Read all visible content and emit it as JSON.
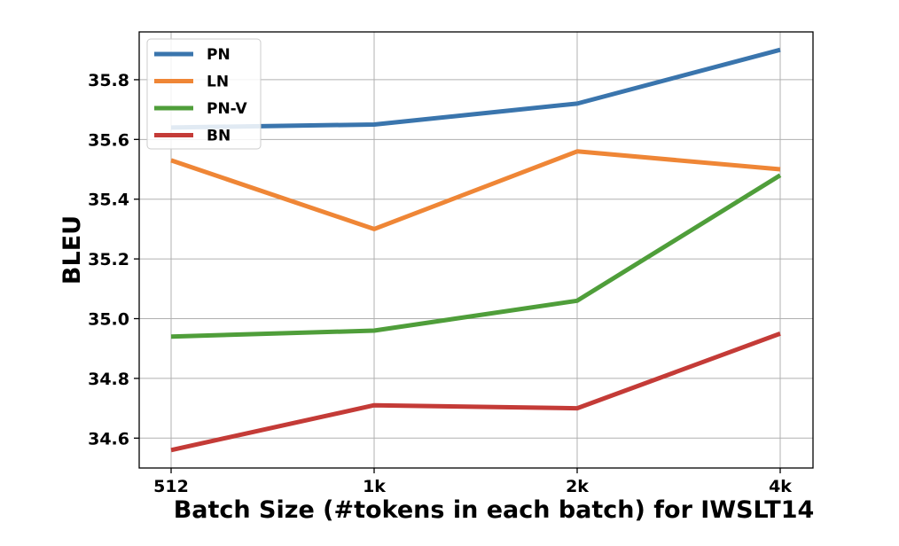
{
  "chart_data": {
    "type": "line",
    "title": "",
    "xlabel": "Batch Size (#tokens in each batch) for IWSLT14",
    "ylabel": "BLEU",
    "categories": [
      "512",
      "1k",
      "2k",
      "4k"
    ],
    "ylim": [
      34.5,
      35.96
    ],
    "yticks": [
      34.6,
      34.8,
      35.0,
      35.2,
      35.4,
      35.6,
      35.8
    ],
    "ytick_labels": [
      "34.6",
      "34.8",
      "35.0",
      "35.2",
      "35.4",
      "35.6",
      "35.8"
    ],
    "grid": true,
    "legend_position": "top-left",
    "series": [
      {
        "name": "PN",
        "color": "#3a75ad",
        "values": [
          35.64,
          35.65,
          35.72,
          35.9
        ]
      },
      {
        "name": "LN",
        "color": "#ef8636",
        "values": [
          35.53,
          35.3,
          35.56,
          35.5
        ]
      },
      {
        "name": "PN-V",
        "color": "#4f9e3a",
        "values": [
          34.94,
          34.96,
          35.06,
          35.48
        ]
      },
      {
        "name": "BN",
        "color": "#c43b37",
        "values": [
          34.56,
          34.71,
          34.7,
          34.95
        ]
      }
    ]
  }
}
